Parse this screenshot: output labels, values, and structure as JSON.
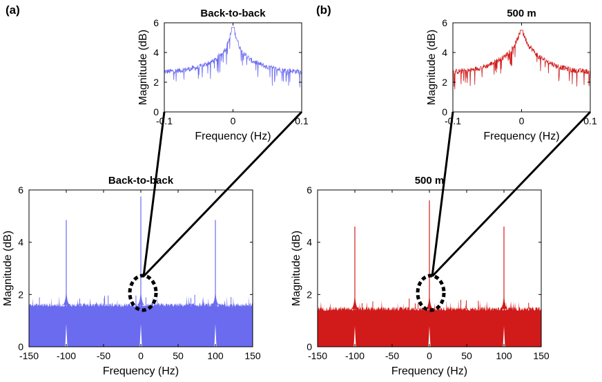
{
  "chart_data": [
    {
      "id": "a-inset",
      "panel_label": "(a)",
      "type": "line",
      "title": "Back-to-back",
      "xlabel": "Frequency (Hz)",
      "ylabel": "Magnitude (dB)",
      "xlim": [
        -0.1,
        0.1
      ],
      "ylim": [
        0,
        6
      ],
      "xticks": [
        -0.1,
        0,
        0.1
      ],
      "xtick_labels": [
        "-0.1",
        "0",
        "0.1"
      ],
      "yticks": [
        0,
        2,
        4,
        6
      ],
      "ytick_labels": [
        "0",
        "2",
        "4",
        "6"
      ],
      "color": "#6b6bf0",
      "series": [
        {
          "name": "spectrum",
          "x": [
            -0.1,
            -0.075,
            -0.05,
            -0.025,
            -0.01,
            0,
            0.01,
            0.025,
            0.05,
            0.075,
            0.1
          ],
          "values": [
            2.7,
            2.8,
            3.0,
            3.5,
            4.3,
            5.7,
            4.3,
            3.5,
            3.0,
            2.8,
            2.7
          ]
        }
      ]
    },
    {
      "id": "b-inset",
      "panel_label": "(b)",
      "type": "line",
      "title": "500 m",
      "xlabel": "Frequency (Hz)",
      "ylabel": "Magnitude (dB)",
      "xlim": [
        -0.1,
        0.1
      ],
      "ylim": [
        0,
        6
      ],
      "xticks": [
        -0.1,
        0,
        0.1
      ],
      "xtick_labels": [
        "-0.1",
        "0",
        "0.1"
      ],
      "yticks": [
        0,
        2,
        4,
        6
      ],
      "ytick_labels": [
        "0",
        "2",
        "4",
        "6"
      ],
      "color": "#d11a1a",
      "series": [
        {
          "name": "spectrum",
          "x": [
            -0.1,
            -0.075,
            -0.05,
            -0.025,
            -0.01,
            0,
            0.01,
            0.025,
            0.05,
            0.075,
            0.1
          ],
          "values": [
            2.7,
            2.8,
            3.1,
            3.7,
            4.5,
            5.5,
            4.5,
            3.7,
            3.1,
            2.8,
            2.7
          ]
        }
      ]
    },
    {
      "id": "a-main",
      "type": "area",
      "title": "Back-to-back",
      "xlabel": "Frequency (Hz)",
      "ylabel": "Magnitude (dB)",
      "xlim": [
        -150,
        150
      ],
      "ylim": [
        0,
        6
      ],
      "xticks": [
        -150,
        -100,
        -50,
        0,
        50,
        100,
        150
      ],
      "xtick_labels": [
        "-150",
        "-100",
        "-50",
        "0",
        "50",
        "100",
        "150"
      ],
      "yticks": [
        0,
        2,
        4,
        6
      ],
      "ytick_labels": [
        "0",
        "2",
        "4",
        "6"
      ],
      "color": "#6b6bf0",
      "noise_floor": 1.6,
      "peaks": [
        {
          "x": -100,
          "y": 4.85
        },
        {
          "x": 0,
          "y": 5.75
        },
        {
          "x": 100,
          "y": 4.85
        }
      ]
    },
    {
      "id": "b-main",
      "type": "area",
      "title": "500 m",
      "xlabel": "Frequency (Hz)",
      "ylabel": "Magnitude (dB)",
      "xlim": [
        -150,
        150
      ],
      "ylim": [
        0,
        6
      ],
      "xticks": [
        -150,
        -100,
        -50,
        0,
        50,
        100,
        150
      ],
      "xtick_labels": [
        "-150",
        "-100",
        "-50",
        "0",
        "50",
        "100",
        "150"
      ],
      "yticks": [
        0,
        2,
        4,
        6
      ],
      "ytick_labels": [
        "0",
        "2",
        "4",
        "6"
      ],
      "color": "#d11a1a",
      "noise_floor": 1.45,
      "peaks": [
        {
          "x": -100,
          "y": 4.6
        },
        {
          "x": 0,
          "y": 5.6
        },
        {
          "x": 100,
          "y": 4.6
        }
      ]
    }
  ]
}
